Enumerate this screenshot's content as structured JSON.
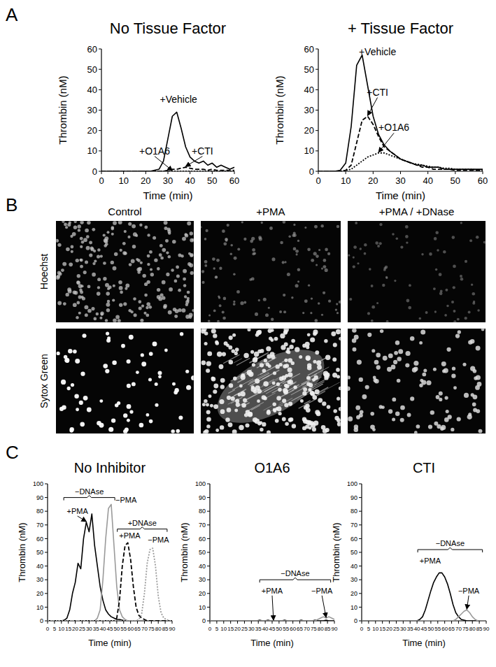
{
  "panels": [
    "A",
    "B",
    "C"
  ],
  "image_grid": {
    "columns": [
      "Control",
      "+PMA",
      "+PMA / +DNase"
    ],
    "rows": [
      "Hoechst",
      "Sytox Green"
    ]
  },
  "chart_data": [
    {
      "type": "line",
      "title": "No Tissue Factor",
      "x_label": "Time (min)",
      "y_label": "Thrombin (nM)",
      "xlim": [
        0,
        60
      ],
      "xticks": [
        0,
        10,
        20,
        30,
        40,
        50,
        60
      ],
      "ylim": [
        0,
        60
      ],
      "yticks": [
        0,
        10,
        20,
        30,
        40,
        50,
        60
      ],
      "grid": false,
      "x": [
        0,
        2,
        4,
        6,
        8,
        10,
        12,
        14,
        16,
        18,
        20,
        22,
        24,
        26,
        28,
        30,
        32,
        34,
        36,
        38,
        40,
        42,
        44,
        46,
        48,
        50,
        52,
        54,
        56,
        58,
        60
      ],
      "series": [
        {
          "name": "+Vehicle",
          "color": "#000000",
          "line_style": "solid",
          "values": [
            0,
            0,
            0,
            0,
            0,
            0,
            0,
            0,
            0,
            0,
            0,
            0,
            0.5,
            1,
            5,
            16,
            27,
            29,
            21,
            12,
            7,
            5,
            4,
            5,
            3,
            4,
            2,
            3,
            2,
            1,
            2
          ]
        },
        {
          "name": "+O1A6",
          "color": "#000000",
          "line_style": "dotted",
          "values": [
            0,
            0,
            0,
            0,
            0,
            0,
            0,
            0,
            0,
            0,
            0,
            0,
            0,
            0,
            0,
            0,
            0,
            0,
            0,
            0,
            0,
            0,
            0,
            0,
            0,
            0,
            0,
            0,
            0,
            0,
            0
          ]
        },
        {
          "name": "+CTI",
          "color": "#000000",
          "line_style": "dashed",
          "values": [
            0,
            0,
            0,
            0,
            0,
            0,
            0,
            0,
            0,
            0,
            0,
            0,
            0,
            0,
            0,
            0.5,
            1,
            1,
            1.5,
            2,
            1.5,
            1,
            1,
            1,
            0.5,
            1,
            0.5,
            0.5,
            0.5,
            0.5,
            0.5
          ]
        }
      ]
    },
    {
      "type": "line",
      "title": "+ Tissue Factor",
      "x_label": "Time (min)",
      "y_label": "Thrombin (nM)",
      "xlim": [
        0,
        60
      ],
      "xticks": [
        0,
        10,
        20,
        30,
        40,
        50,
        60
      ],
      "ylim": [
        0,
        60
      ],
      "yticks": [
        0,
        10,
        20,
        30,
        40,
        50,
        60
      ],
      "grid": false,
      "x": [
        0,
        2,
        4,
        6,
        8,
        10,
        12,
        14,
        16,
        18,
        20,
        22,
        24,
        26,
        28,
        30,
        32,
        34,
        36,
        38,
        40,
        42,
        44,
        46,
        48,
        50,
        52,
        54,
        56,
        58,
        60
      ],
      "series": [
        {
          "name": "+Vehicle",
          "color": "#000000",
          "line_style": "solid",
          "values": [
            0,
            0,
            0,
            0,
            0.5,
            4,
            22,
            52,
            57,
            42,
            27,
            18,
            13,
            10,
            8,
            6,
            5,
            4,
            3,
            3,
            2,
            2,
            2,
            1,
            1,
            1,
            1,
            1,
            1,
            1,
            1
          ]
        },
        {
          "name": "+CTI",
          "color": "#000000",
          "line_style": "dashed",
          "values": [
            0,
            0,
            0,
            0,
            0,
            0.5,
            3,
            14,
            25,
            27,
            23,
            17,
            12,
            10,
            8,
            6,
            5,
            4,
            3,
            2,
            2,
            1,
            1,
            1,
            1,
            0.5,
            0.5,
            0.5,
            0.5,
            0.5,
            0.5
          ]
        },
        {
          "name": "+O1A6",
          "color": "#000000",
          "line_style": "dotted",
          "values": [
            0,
            0,
            0,
            0,
            0,
            0.5,
            1,
            3,
            5,
            7,
            8,
            9,
            9,
            8,
            7,
            6,
            5,
            4,
            3.5,
            3,
            2.5,
            2,
            2,
            1.5,
            1.5,
            1,
            1,
            1,
            1,
            0.5,
            0.5
          ]
        }
      ]
    },
    {
      "type": "line",
      "title": "No Inhibitor",
      "x_label": "Time (min)",
      "y_label": "Thrombin (nM)",
      "xlim": [
        0,
        90
      ],
      "xticks": [
        0,
        5,
        10,
        15,
        20,
        25,
        30,
        35,
        40,
        45,
        50,
        55,
        60,
        65,
        70,
        75,
        80,
        85,
        90
      ],
      "ylim": [
        0,
        100
      ],
      "yticks": [
        0,
        10,
        20,
        30,
        40,
        50,
        60,
        70,
        80,
        90,
        100
      ],
      "grid": false,
      "x": [
        0,
        2,
        4,
        6,
        8,
        10,
        12,
        14,
        16,
        18,
        20,
        22,
        24,
        26,
        28,
        30,
        32,
        34,
        36,
        38,
        40,
        42,
        44,
        46,
        48,
        50,
        52,
        54,
        56,
        58,
        60,
        62,
        64,
        66,
        68,
        70,
        72,
        74,
        76,
        78,
        80,
        82,
        84,
        86,
        88,
        90
      ],
      "series": [
        {
          "name": "+PMA",
          "group": "−DNAse",
          "color": "#000000",
          "line_style": "solid",
          "values": [
            0,
            0,
            0,
            0,
            0,
            0,
            0.5,
            2,
            8,
            20,
            28,
            42,
            38,
            60,
            72,
            65,
            78,
            55,
            40,
            25,
            15,
            8,
            5,
            3,
            2,
            1,
            1,
            0.5,
            0,
            0,
            0,
            0,
            0,
            0,
            0,
            0,
            0,
            0,
            0,
            0,
            0,
            0,
            0,
            0,
            0,
            0
          ]
        },
        {
          "name": "−PMA",
          "group": "−DNAse",
          "color": "#9a9a9a",
          "line_style": "solid",
          "values": [
            0,
            0,
            0,
            0,
            0,
            0,
            0,
            0,
            0,
            0,
            0,
            0,
            0,
            0,
            0,
            0,
            0,
            0,
            2,
            8,
            30,
            60,
            82,
            85,
            55,
            25,
            8,
            3,
            1,
            0,
            0,
            0,
            0,
            0,
            0,
            0,
            0,
            0,
            0,
            0,
            0,
            0,
            0,
            0,
            0,
            0
          ]
        },
        {
          "name": "+PMA",
          "group": "+DNAse",
          "color": "#000000",
          "line_style": "dashed",
          "values": [
            0,
            0,
            0,
            0,
            0,
            0,
            0,
            0,
            0,
            0,
            0,
            0,
            0,
            0,
            0,
            0,
            0,
            0,
            0,
            0,
            0,
            0,
            0,
            0,
            0,
            2,
            15,
            40,
            55,
            57,
            45,
            25,
            10,
            4,
            2,
            1,
            0,
            0,
            0,
            0,
            0,
            0,
            0,
            0,
            0,
            0
          ]
        },
        {
          "name": "−PMA",
          "group": "+DNAse",
          "color": "#9a9a9a",
          "line_style": "dotted",
          "values": [
            0,
            0,
            0,
            0,
            0,
            0,
            0,
            0,
            0,
            0,
            0,
            0,
            0,
            0,
            0,
            0,
            0,
            0,
            0,
            0,
            0,
            0,
            0,
            0,
            0,
            0,
            0,
            0,
            0,
            0,
            0,
            0,
            0,
            1,
            5,
            20,
            42,
            52,
            53,
            40,
            18,
            6,
            2,
            1,
            0,
            0
          ]
        }
      ]
    },
    {
      "type": "line",
      "title": "O1A6",
      "x_label": "Time (min)",
      "y_label": "Thrombin (nM)",
      "xlim": [
        0,
        90
      ],
      "xticks": [
        0,
        5,
        10,
        15,
        20,
        25,
        30,
        35,
        40,
        45,
        50,
        55,
        60,
        65,
        70,
        75,
        80,
        85,
        90
      ],
      "ylim": [
        0,
        100
      ],
      "yticks": [
        0,
        10,
        20,
        30,
        40,
        50,
        60,
        70,
        80,
        90,
        100
      ],
      "grid": false,
      "x": [
        0,
        2,
        4,
        6,
        8,
        10,
        12,
        14,
        16,
        18,
        20,
        22,
        24,
        26,
        28,
        30,
        32,
        34,
        36,
        38,
        40,
        42,
        44,
        46,
        48,
        50,
        52,
        54,
        56,
        58,
        60,
        62,
        64,
        66,
        68,
        70,
        72,
        74,
        76,
        78,
        80,
        82,
        84,
        86,
        88,
        90
      ],
      "series": [
        {
          "name": "+PMA",
          "group": "−DNAse",
          "color": "#000000",
          "line_style": "solid",
          "values": [
            0,
            0,
            0,
            0,
            0,
            0,
            0,
            0,
            0,
            0,
            0,
            0,
            0,
            0,
            0,
            0,
            0,
            0,
            0.5,
            0,
            0,
            0.5,
            0,
            0,
            0,
            0,
            0,
            0.5,
            0,
            0,
            0,
            0,
            0,
            0.5,
            0,
            0,
            0,
            0,
            0.5,
            0,
            0,
            0,
            0.5,
            0,
            0,
            0
          ]
        },
        {
          "name": "−PMA",
          "group": "−DNAse",
          "color": "#9a9a9a",
          "line_style": "solid",
          "values": [
            0,
            0,
            0,
            0,
            0,
            0,
            0,
            0,
            0,
            0,
            0,
            0,
            0,
            0,
            0,
            0,
            0,
            0,
            0,
            0,
            0,
            0,
            0,
            0,
            0,
            0,
            0,
            0,
            0,
            0,
            0,
            0,
            0,
            0,
            0,
            0,
            0,
            0,
            0,
            1,
            2,
            3,
            2,
            3,
            2,
            1
          ]
        }
      ]
    },
    {
      "type": "line",
      "title": "CTI",
      "x_label": "Time (min)",
      "y_label": "Thrombin (nM)",
      "xlim": [
        0,
        90
      ],
      "xticks": [
        0,
        5,
        10,
        15,
        20,
        25,
        30,
        35,
        40,
        45,
        50,
        55,
        60,
        65,
        70,
        75,
        80,
        85,
        90
      ],
      "ylim": [
        0,
        100
      ],
      "yticks": [
        0,
        10,
        20,
        30,
        40,
        50,
        60,
        70,
        80,
        90,
        100
      ],
      "grid": false,
      "x": [
        0,
        2,
        4,
        6,
        8,
        10,
        12,
        14,
        16,
        18,
        20,
        22,
        24,
        26,
        28,
        30,
        32,
        34,
        36,
        38,
        40,
        42,
        44,
        46,
        48,
        50,
        52,
        54,
        56,
        58,
        60,
        62,
        64,
        66,
        68,
        70,
        72,
        74,
        76,
        78,
        80,
        82,
        84,
        86,
        88,
        90
      ],
      "series": [
        {
          "name": "+PMA",
          "group": "−DNAse",
          "color": "#000000",
          "line_style": "solid",
          "values": [
            0,
            0,
            0,
            0,
            0,
            0,
            0,
            0,
            0,
            0,
            0,
            0,
            0,
            0,
            0,
            0,
            0,
            0,
            0,
            0,
            0,
            1,
            3,
            8,
            15,
            22,
            28,
            32,
            35,
            35,
            32,
            27,
            20,
            12,
            6,
            3,
            1,
            0.5,
            0,
            0,
            0,
            0,
            0,
            0,
            0,
            0
          ]
        },
        {
          "name": "−PMA",
          "group": "−DNAse",
          "color": "#9a9a9a",
          "line_style": "solid",
          "values": [
            0,
            0,
            0,
            0,
            0,
            0,
            0,
            0,
            0,
            0,
            0,
            0,
            0,
            0,
            0,
            0,
            0,
            0,
            0,
            0,
            0,
            0,
            0,
            0,
            0,
            0,
            0,
            0,
            0,
            0,
            0,
            0,
            0,
            0,
            1,
            3,
            5,
            7,
            8,
            6,
            3,
            1,
            0,
            0,
            0,
            0
          ]
        }
      ]
    }
  ]
}
